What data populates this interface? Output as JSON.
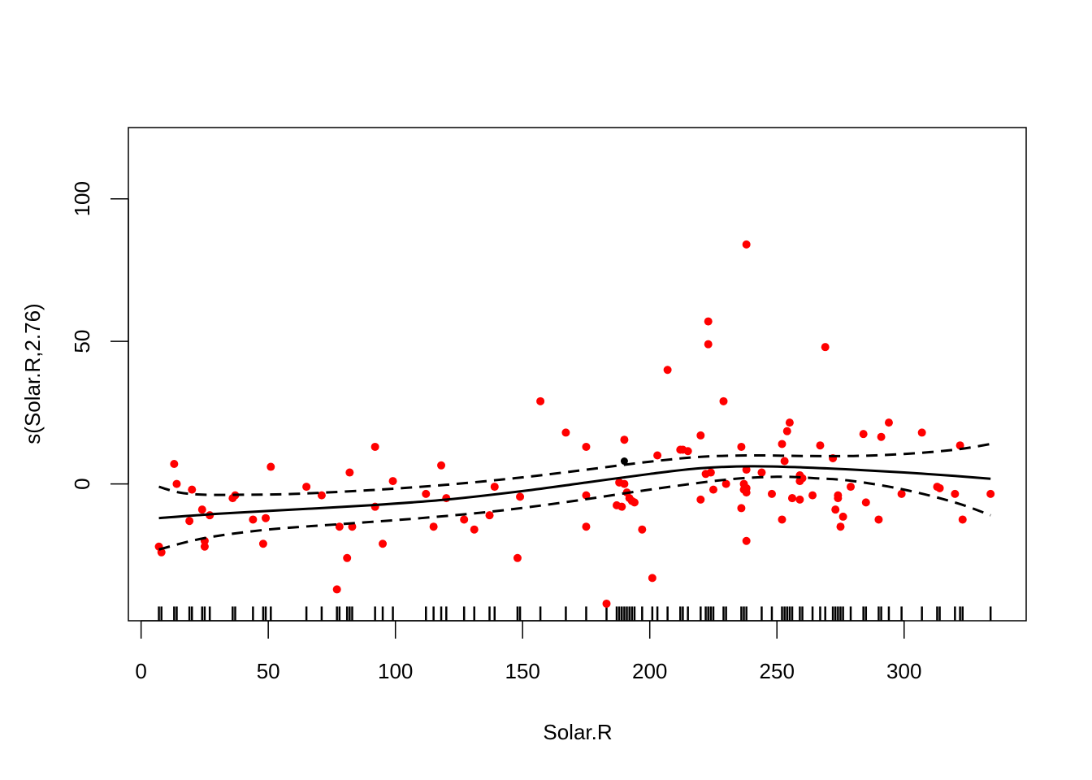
{
  "chart_data": {
    "type": "scatter",
    "title": "",
    "xlabel": "Solar.R",
    "ylabel": "s(Solar.R,2.76)",
    "xlim": [
      -5,
      348
    ],
    "ylim": [
      -48,
      125
    ],
    "x_ticks": [
      0,
      50,
      100,
      150,
      200,
      250,
      300
    ],
    "y_ticks": [
      0,
      50,
      100
    ],
    "x_tick_labels": [
      "0",
      "50",
      "100",
      "150",
      "200",
      "250",
      "300"
    ],
    "y_tick_labels": [
      "0",
      "50",
      "100"
    ],
    "grid": false,
    "legend": "none",
    "colors": {
      "points": "#ff0000",
      "line": "#000000",
      "highlight_point": "#000000"
    },
    "smooth_fit": {
      "x": [
        7,
        30,
        60,
        90,
        120,
        150,
        175,
        200,
        220,
        240,
        260,
        280,
        300,
        320,
        334
      ],
      "y": [
        -12,
        -10.5,
        -9,
        -7.5,
        -5.5,
        -2.5,
        0.5,
        3.5,
        5.5,
        6.2,
        5.8,
        5,
        4,
        2.8,
        1.8
      ]
    },
    "upper_band": {
      "x": [
        7,
        15,
        25,
        40,
        60,
        90,
        120,
        150,
        175,
        200,
        220,
        240,
        260,
        280,
        300,
        320,
        334
      ],
      "y": [
        -1,
        -3,
        -3.8,
        -3.8,
        -3.5,
        -2.2,
        -0.3,
        2.3,
        5,
        7.8,
        9.5,
        10,
        9.8,
        9.8,
        10.5,
        12,
        14
      ]
    },
    "lower_band": {
      "x": [
        7,
        25,
        50,
        80,
        110,
        140,
        170,
        200,
        230,
        250,
        265,
        280,
        300,
        320,
        334
      ],
      "y": [
        -23,
        -19,
        -16,
        -14,
        -12,
        -9.5,
        -6,
        -2,
        1.5,
        2.5,
        2,
        1,
        -2,
        -6.5,
        -11
      ]
    },
    "highlight_point": {
      "x": 190,
      "y": 8
    },
    "points": {
      "x": [
        7,
        8,
        13,
        14,
        19,
        20,
        24,
        25,
        25,
        27,
        36,
        37,
        44,
        48,
        49,
        51,
        65,
        71,
        77,
        78,
        81,
        82,
        83,
        92,
        92,
        95,
        99,
        112,
        115,
        118,
        120,
        127,
        131,
        137,
        139,
        148,
        149,
        157,
        167,
        175,
        175,
        175,
        183,
        187,
        188,
        189,
        190,
        190,
        191,
        192,
        193,
        194,
        197,
        201,
        203,
        207,
        212,
        213,
        215,
        220,
        220,
        222,
        223,
        223,
        224,
        225,
        229,
        230,
        236,
        236,
        237,
        237,
        238,
        238,
        238,
        238,
        238,
        244,
        248,
        252,
        252,
        253,
        254,
        255,
        256,
        256,
        259,
        259,
        259,
        260,
        264,
        267,
        269,
        272,
        273,
        274,
        274,
        275,
        276,
        279,
        284,
        285,
        290,
        291,
        294,
        299,
        307,
        313,
        314,
        320,
        322,
        323,
        334
      ],
      "y": [
        -22,
        -24,
        7,
        0,
        -13,
        -2,
        -9,
        -22,
        -20,
        -11,
        -5,
        -4,
        -12.5,
        -21,
        -12,
        6,
        -1,
        -4,
        -37,
        -15,
        -26,
        4,
        -15,
        -8,
        13,
        -21,
        1,
        -3.5,
        -15,
        6.5,
        -5,
        -12.5,
        -16,
        -11,
        -1,
        -26,
        -4.5,
        29,
        18,
        13,
        -4,
        -15,
        -42,
        -7.5,
        0.5,
        -8,
        15.5,
        0,
        -3,
        -5,
        -6,
        -6.5,
        -16,
        -33,
        10,
        40,
        12,
        12,
        11.5,
        17,
        -5.5,
        3.5,
        57,
        49,
        4,
        -2,
        29,
        0,
        13,
        -8.5,
        0,
        -2,
        -3,
        -1.5,
        5,
        -20,
        84,
        4,
        -3.5,
        14,
        -12.5,
        8,
        18.5,
        21.5,
        -5,
        -5,
        3,
        1,
        -5.5,
        2,
        -4,
        13.5,
        48,
        9,
        -9,
        -4,
        -5,
        -15,
        -11.5,
        -1,
        17.5,
        -6.5,
        -12.5,
        16.5,
        21.5,
        -3.5,
        18,
        -1,
        -1.5,
        -3.5,
        13.5,
        -12.5,
        -3.5
      ]
    },
    "rug_x": [
      7,
      8,
      13,
      14,
      19,
      20,
      24,
      25,
      27,
      36,
      37,
      44,
      48,
      49,
      51,
      65,
      71,
      77,
      78,
      81,
      82,
      83,
      92,
      95,
      99,
      112,
      115,
      118,
      120,
      127,
      131,
      137,
      139,
      148,
      149,
      157,
      167,
      175,
      183,
      187,
      188,
      189,
      190,
      191,
      192,
      193,
      194,
      197,
      201,
      203,
      207,
      212,
      213,
      215,
      220,
      222,
      223,
      224,
      225,
      229,
      230,
      236,
      237,
      238,
      244,
      248,
      252,
      253,
      254,
      255,
      256,
      259,
      260,
      264,
      267,
      269,
      272,
      273,
      274,
      275,
      276,
      279,
      284,
      285,
      290,
      291,
      294,
      299,
      307,
      313,
      314,
      320,
      322,
      323,
      334
    ]
  }
}
